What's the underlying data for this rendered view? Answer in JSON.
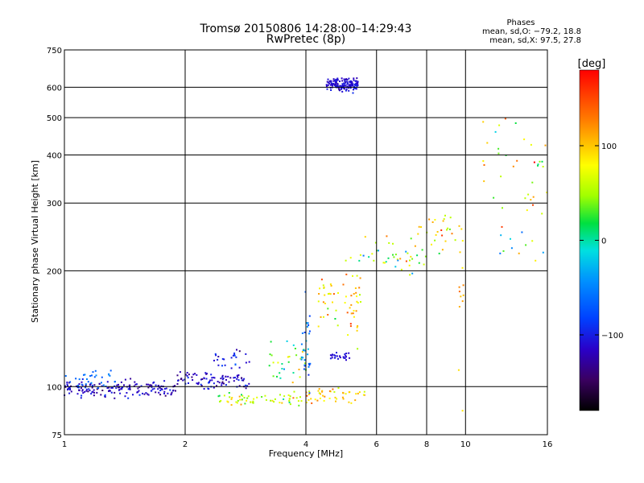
{
  "chart_data": {
    "type": "scatter",
    "title": "Tromsø 20150806 14:28:00–14:29:43",
    "subtitle": "RwPretec (8p)",
    "xlabel": "Frequency [MHz]",
    "ylabel": "Stationary phase Virtual Height [km]",
    "x_scale": "log",
    "y_scale": "log",
    "xlim": [
      1,
      16
    ],
    "ylim": [
      75,
      750
    ],
    "x_ticks": [
      1,
      2,
      4,
      6,
      8,
      10,
      16
    ],
    "y_ticks": [
      75,
      100,
      200,
      300,
      400,
      500,
      600,
      750
    ],
    "grid": true,
    "phase_stats": {
      "heading": "Phases",
      "o_line": "mean, sd,O: −79.2, 18.8",
      "x_line": "mean, sd,X:  97.5, 27.8"
    },
    "colorbar": {
      "label": "[deg]",
      "range": [
        -180,
        180
      ],
      "ticks": [
        100,
        0,
        -100
      ]
    },
    "clusters": [
      {
        "x_range": [
          1.0,
          1.9
        ],
        "y_center": 99,
        "y_spread": 4,
        "n": 170,
        "phase": -115,
        "phase_sd": 25
      },
      {
        "x_range": [
          1.0,
          1.35
        ],
        "y_center": 106,
        "y_spread": 6,
        "n": 30,
        "phase": -60,
        "phase_sd": 15
      },
      {
        "x_range": [
          1.9,
          2.9
        ],
        "y_center": 104,
        "y_spread": 5,
        "n": 90,
        "phase": -115,
        "phase_sd": 25
      },
      {
        "x_range": [
          2.3,
          2.9
        ],
        "y_center": 118,
        "y_spread": 6,
        "n": 25,
        "phase": -100,
        "phase_sd": 30
      },
      {
        "x_range": [
          2.4,
          3.9
        ],
        "y_center": 93,
        "y_spread": 3,
        "n": 60,
        "phase": 60,
        "phase_sd": 50
      },
      {
        "x_range": [
          3.2,
          4.0
        ],
        "y_center": 115,
        "y_spread": 12,
        "n": 30,
        "phase": 40,
        "phase_sd": 80
      },
      {
        "x_range": [
          3.9,
          4.1
        ],
        "y_center": 130,
        "y_spread": 30,
        "n": 30,
        "phase": -60,
        "phase_sd": 40
      },
      {
        "x_range": [
          4.0,
          5.6
        ],
        "y_center": 95,
        "y_spread": 4,
        "n": 45,
        "phase": 100,
        "phase_sd": 40
      },
      {
        "x_range": [
          4.3,
          5.5
        ],
        "y_center": 170,
        "y_spread": 35,
        "n": 60,
        "phase": 90,
        "phase_sd": 60
      },
      {
        "x_range": [
          4.6,
          5.2
        ],
        "y_center": 120,
        "y_spread": 2,
        "n": 25,
        "phase": -110,
        "phase_sd": 10
      },
      {
        "x_range": [
          4.5,
          5.4
        ],
        "y_center": 610,
        "y_spread": 20,
        "n": 150,
        "phase": -110,
        "phase_sd": 15
      },
      {
        "x_range": [
          5.4,
          8.0
        ],
        "y_center": 215,
        "y_spread": 25,
        "n": 40,
        "phase": 40,
        "phase_sd": 90
      },
      {
        "x_range": [
          7.5,
          9.9
        ],
        "y_center": 260,
        "y_spread": 30,
        "n": 30,
        "phase": 80,
        "phase_sd": 60
      },
      {
        "x_range": [
          9.6,
          9.9
        ],
        "y_center": 150,
        "y_spread": 60,
        "n": 10,
        "phase": 100,
        "phase_sd": 40
      },
      {
        "x_range": [
          11.0,
          16.0
        ],
        "y_center": 380,
        "y_spread": 90,
        "n": 35,
        "phase": 80,
        "phase_sd": 80
      },
      {
        "x_range": [
          12.0,
          16.0
        ],
        "y_center": 240,
        "y_spread": 30,
        "n": 12,
        "phase": 0,
        "phase_sd": 120
      }
    ]
  }
}
